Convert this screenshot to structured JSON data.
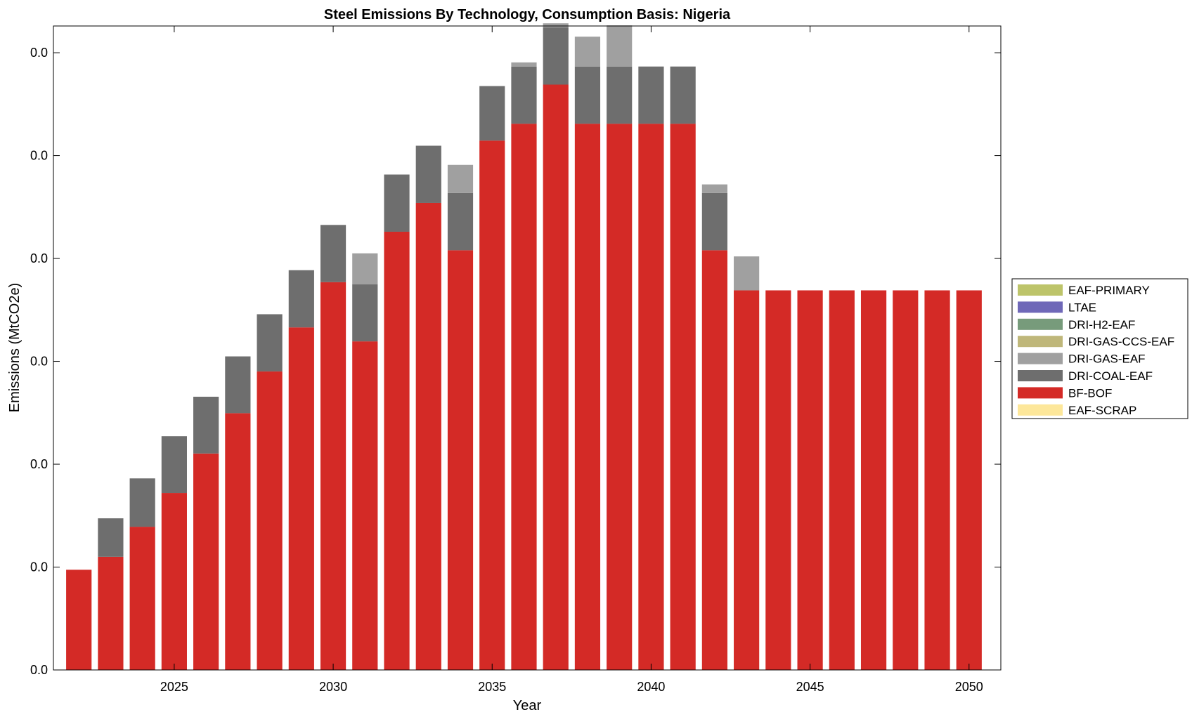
{
  "chart_data": {
    "type": "bar",
    "stacked": true,
    "title": "Steel Emissions By Technology, Consumption Basis: Nigeria",
    "xlabel": "Year",
    "ylabel": "Emissions (MtCO2e)",
    "x": [
      2022,
      2023,
      2024,
      2025,
      2026,
      2027,
      2028,
      2029,
      2030,
      2031,
      2032,
      2033,
      2034,
      2035,
      2036,
      2037,
      2038,
      2039,
      2040,
      2041,
      2042,
      2043,
      2044,
      2045,
      2046,
      2047,
      2048,
      2049,
      2050
    ],
    "xlim": [
      2021.2,
      2051.0
    ],
    "xticks": [
      2025,
      2030,
      2035,
      2040,
      2045,
      2050
    ],
    "ylim": [
      0,
      0.0313
    ],
    "yticks": [
      0,
      0.005,
      0.01,
      0.015,
      0.02,
      0.025,
      0.03
    ],
    "ytick_labels": [
      "0.0",
      "0.0",
      "0.0",
      "0.0",
      "0.0",
      "0.0",
      "0.0"
    ],
    "grid": false,
    "legend_position": "right",
    "series": [
      {
        "name": "BF-BOF",
        "color": "#d42a26",
        "values": [
          0.00487,
          0.0055,
          0.00696,
          0.0086,
          0.01052,
          0.01248,
          0.01451,
          0.01665,
          0.01885,
          0.01597,
          0.0213,
          0.0227,
          0.0204,
          0.02573,
          0.02655,
          0.02845,
          0.02655,
          0.02655,
          0.02655,
          0.02655,
          0.0204,
          0.01845,
          0.01845,
          0.01845,
          0.01845,
          0.01845,
          0.01845,
          0.01845,
          0.01845
        ]
      },
      {
        "name": "DRI-COAL-EAF",
        "color": "#6e6e6e",
        "values": [
          0,
          0.00187,
          0.00235,
          0.00276,
          0.00276,
          0.00276,
          0.00278,
          0.00278,
          0.00278,
          0.00278,
          0.00278,
          0.00278,
          0.00278,
          0.00265,
          0.00278,
          0.00278,
          0.00278,
          0.00278,
          0.00278,
          0.00278,
          0.00278,
          0,
          0,
          0,
          0,
          0,
          0,
          0,
          0
        ]
      },
      {
        "name": "DRI-GAS-EAF",
        "color": "#a0a0a0",
        "values": [
          0,
          0,
          0,
          0,
          0,
          0,
          0,
          0,
          0,
          0.0015,
          0,
          0,
          0.00137,
          0,
          0.0002,
          0.0002,
          0.00145,
          0.002,
          0,
          0,
          0.00042,
          0.00165,
          0,
          0,
          0,
          0,
          0,
          0,
          0
        ]
      },
      {
        "name": "DRI-GAS-CCS-EAF",
        "color": "#bfb77a",
        "values": [
          0,
          0,
          0,
          0,
          0,
          0,
          0,
          0,
          0,
          0,
          0,
          0,
          0,
          0,
          0,
          0,
          0,
          0,
          0,
          0,
          0,
          0,
          0,
          0,
          0,
          0,
          0,
          0,
          0
        ]
      },
      {
        "name": "DRI-H2-EAF",
        "color": "#779b7b",
        "values": [
          0,
          0,
          0,
          0,
          0,
          0,
          0,
          0,
          0,
          0,
          0,
          0,
          0,
          0,
          0,
          0,
          0,
          0,
          0,
          0,
          0,
          0,
          0,
          0,
          0,
          0,
          0,
          0,
          0
        ]
      },
      {
        "name": "LTAE",
        "color": "#6f68b8",
        "values": [
          0,
          0,
          0,
          0,
          0,
          0,
          0,
          0,
          0,
          0,
          0,
          0,
          0,
          0,
          0,
          0,
          0,
          0,
          0,
          0,
          0,
          0,
          0,
          0,
          0,
          0,
          0,
          0,
          0
        ]
      },
      {
        "name": "EAF-PRIMARY",
        "color": "#bdc46a",
        "values": [
          0,
          0,
          0,
          0,
          0,
          0,
          0,
          0,
          0,
          0,
          0,
          0,
          0,
          0,
          0,
          0,
          0,
          0,
          0,
          0,
          0,
          0,
          0,
          0,
          0,
          0,
          0,
          0,
          0
        ]
      },
      {
        "name": "EAF-SCRAP",
        "color": "#fde79a",
        "values": [
          0,
          0,
          0,
          0,
          0,
          0,
          0,
          0,
          0,
          0,
          0,
          0,
          0,
          0,
          0,
          0,
          0,
          0,
          0,
          0,
          0,
          0,
          0,
          0,
          0,
          0,
          0,
          0,
          0
        ]
      }
    ],
    "legend": [
      "EAF-PRIMARY",
      "LTAE",
      "DRI-H2-EAF",
      "DRI-GAS-CCS-EAF",
      "DRI-GAS-EAF",
      "DRI-COAL-EAF",
      "BF-BOF",
      "EAF-SCRAP"
    ]
  }
}
